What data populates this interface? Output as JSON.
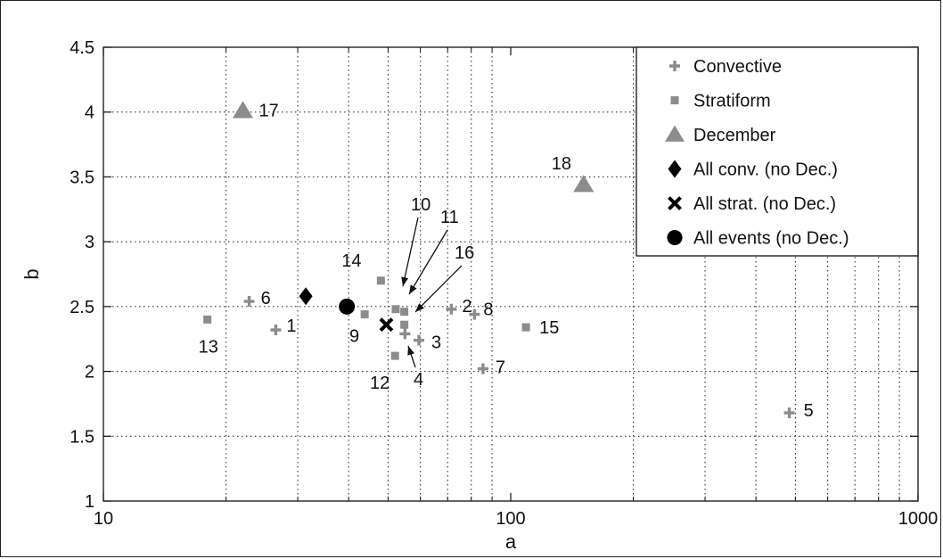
{
  "chart_data": {
    "type": "scatter",
    "xlabel": "a",
    "ylabel": "b",
    "x_scale": "log",
    "xlim": [
      10,
      1000
    ],
    "ylim": [
      1,
      4.5
    ],
    "x_ticks": [
      10,
      100,
      1000
    ],
    "x_tick_labels": [
      "10",
      "100",
      "1000"
    ],
    "y_ticks": [
      1,
      1.5,
      2,
      2.5,
      3,
      3.5,
      4,
      4.5
    ],
    "y_tick_labels": [
      "1",
      "1.5",
      "2",
      "2.5",
      "3",
      "3.5",
      "4",
      "4.5"
    ],
    "grid": true,
    "legend_position": "top-right",
    "series": [
      {
        "name": "Convective",
        "marker": "plus",
        "color": "#8c8c8c",
        "points": [
          {
            "label": "1",
            "x": 26.5,
            "y": 2.32
          },
          {
            "label": "2",
            "x": 71.5,
            "y": 2.48
          },
          {
            "label": "3",
            "x": 59.5,
            "y": 2.24
          },
          {
            "label": "4",
            "x": 55.0,
            "y": 2.29
          },
          {
            "label": "5",
            "x": 483,
            "y": 1.68
          },
          {
            "label": "6",
            "x": 22.8,
            "y": 2.54
          },
          {
            "label": "7",
            "x": 85.5,
            "y": 2.02
          },
          {
            "label": "8",
            "x": 81.5,
            "y": 2.44
          }
        ]
      },
      {
        "name": "Stratiform",
        "marker": "square",
        "color": "#8c8c8c",
        "points": [
          {
            "label": "9",
            "x": 43.8,
            "y": 2.44
          },
          {
            "label": "10",
            "x": 52.2,
            "y": 2.48
          },
          {
            "label": "11",
            "x": 54.8,
            "y": 2.46
          },
          {
            "label": "12",
            "x": 52.0,
            "y": 2.12
          },
          {
            "label": "13",
            "x": 18.0,
            "y": 2.4
          },
          {
            "label": "14",
            "x": 48.0,
            "y": 2.7
          },
          {
            "label": "15",
            "x": 109,
            "y": 2.34
          },
          {
            "label": "16",
            "x": 54.8,
            "y": 2.36
          }
        ]
      },
      {
        "name": "December",
        "marker": "triangle",
        "color": "#8c8c8c",
        "points": [
          {
            "label": "17",
            "x": 22.0,
            "y": 4.01
          },
          {
            "label": "18",
            "x": 151,
            "y": 3.44
          }
        ]
      },
      {
        "name": "All conv. (no Dec.)",
        "marker": "diamond",
        "color": "#000000",
        "points": [
          {
            "x": 31.4,
            "y": 2.58
          }
        ]
      },
      {
        "name": "All strat. (no Dec.)",
        "marker": "x",
        "color": "#000000",
        "points": [
          {
            "x": 49.5,
            "y": 2.36
          }
        ]
      },
      {
        "name": "All events (no Dec.)",
        "marker": "circle",
        "color": "#000000",
        "points": [
          {
            "x": 39.6,
            "y": 2.5
          }
        ]
      }
    ]
  }
}
